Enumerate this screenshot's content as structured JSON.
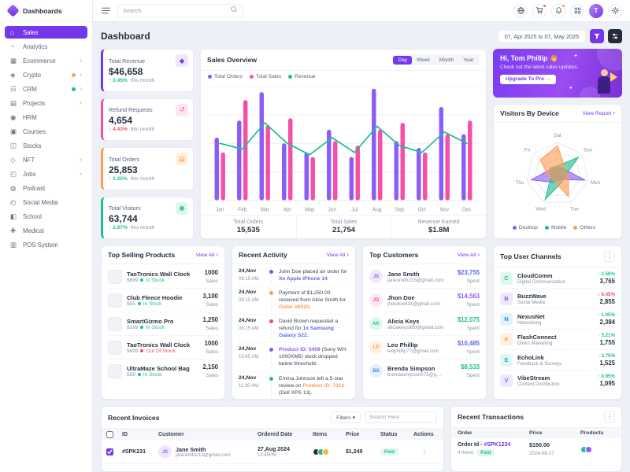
{
  "brand": {
    "name": "Dashboards"
  },
  "icons": {
    "chevron_right": "›",
    "caret_down": "▾",
    "dots_menu": "⋮",
    "spark": "✦",
    "up_arrow": "↑",
    "down_arrow": "↓"
  },
  "topbar": {
    "search_placeholder": "Search",
    "avatar_initial": "T",
    "cart_badge_color": "#f74fa8",
    "bell_badge_color": "#ff9b54"
  },
  "sidebar": {
    "items": [
      {
        "label": "Sales",
        "glyph": "⌂",
        "state": "active"
      },
      {
        "label": "Analytics",
        "glyph": "◔"
      },
      {
        "label": "Ecommerce",
        "glyph": "▦",
        "chev": "›"
      },
      {
        "label": "Crypto",
        "glyph": "◈",
        "chev": "›",
        "badge": "#ff9b54"
      },
      {
        "label": "CRM",
        "glyph": "☷",
        "chev": "›",
        "badge": "#1fbf92"
      },
      {
        "label": "Projects",
        "glyph": "▤",
        "chev": "›"
      },
      {
        "label": "HRM",
        "glyph": "◉"
      },
      {
        "label": "Courses",
        "glyph": "▣"
      },
      {
        "label": "Stocks",
        "glyph": "◫"
      },
      {
        "label": "NFT",
        "glyph": "◇",
        "chev": "›"
      },
      {
        "label": "Jobs",
        "glyph": "◰",
        "chev": "›"
      },
      {
        "label": "Podcast",
        "glyph": "◍"
      },
      {
        "label": "Social Media",
        "glyph": "◴"
      },
      {
        "label": "School",
        "glyph": "◧"
      },
      {
        "label": "Medical",
        "glyph": "✚"
      },
      {
        "label": "POS System",
        "glyph": "▥"
      }
    ]
  },
  "page": {
    "title": "Dashboard",
    "date_range": "07, Apr 2025 to 07, May 2025"
  },
  "stats": [
    {
      "label": "Total Revenue",
      "value": "$46,658",
      "arrow": "↑ ",
      "change": "0.45%",
      "change_color": "#1fbf92",
      "suffix": "this month",
      "accent": "#7337ec",
      "icon_bg": "#efe7fd",
      "glyph": "◆"
    },
    {
      "label": "Refund Requests",
      "value": "4,654",
      "arrow": "↓ ",
      "change": "4.43%",
      "change_color": "#ef4d63",
      "suffix": "this month",
      "accent": "#f74fa8",
      "icon_bg": "#fde7f3",
      "glyph": "↺"
    },
    {
      "label": "Total Orders",
      "value": "25,853",
      "arrow": "↑ ",
      "change": "1.25%",
      "change_color": "#1fbf92",
      "suffix": "this month",
      "accent": "#ff9b54",
      "icon_bg": "#fff1e0",
      "glyph": "▤"
    },
    {
      "label": "Total Visitors",
      "value": "63,744",
      "arrow": "↑ ",
      "change": "2.97%",
      "change_color": "#1fbf92",
      "suffix": "this month",
      "accent": "#1fbf92",
      "icon_bg": "#e0f7ef",
      "glyph": "◉"
    }
  ],
  "sales_overview": {
    "title": "Sales Overview",
    "tabs": [
      {
        "label": "Day",
        "state": "active"
      },
      {
        "label": "Week"
      },
      {
        "label": "Month"
      },
      {
        "label": "Year"
      }
    ],
    "footer": [
      {
        "label": "Total Orders",
        "value": "15,535"
      },
      {
        "label": "Total Sales",
        "value": "21,754"
      },
      {
        "label": "Revenue Earned",
        "value": "$1.8M"
      }
    ]
  },
  "promo": {
    "greeting": "Hi, Tom Phillip 👋",
    "subtitle": "Check out the latest sales updates.",
    "cta": "Upgrade To Pro →"
  },
  "visitors": {
    "title": "Visitors By Device",
    "link": "View Report"
  },
  "chart_data": [
    {
      "type": "bar",
      "title": "Sales Overview",
      "categories": [
        "Jan",
        "Feb",
        "Mar",
        "Apr",
        "May",
        "Jun",
        "Jul",
        "Aug",
        "Sep",
        "Oct",
        "Nov",
        "Dec"
      ],
      "series": [
        {
          "name": "Total Orders",
          "kind": "bar",
          "color": "#8c5cf6",
          "values": [
            55,
            70,
            95,
            50,
            42,
            62,
            38,
            98,
            52,
            46,
            82,
            58
          ]
        },
        {
          "name": "Total Sales",
          "kind": "bar",
          "color": "#f74fa8",
          "values": [
            42,
            88,
            66,
            72,
            38,
            52,
            48,
            62,
            68,
            42,
            58,
            70
          ]
        },
        {
          "name": "Revenue",
          "kind": "line",
          "color": "#1fbf92",
          "values": [
            50,
            45,
            68,
            50,
            40,
            55,
            42,
            65,
            48,
            42,
            60,
            50
          ]
        }
      ],
      "ylim": [
        0,
        100
      ],
      "grid": true,
      "legend_position": "top"
    },
    {
      "type": "radar",
      "title": "Visitors By Device",
      "axes": [
        "Sat",
        "Sun",
        "Mon",
        "Tue",
        "Wed",
        "Thu",
        "Fri"
      ],
      "series": [
        {
          "name": "Desktop",
          "color": "#8c5cf6",
          "values": [
            20,
            25,
            90,
            20,
            30,
            85,
            25
          ]
        },
        {
          "name": "Mobile",
          "color": "#1fbf92",
          "values": [
            25,
            85,
            25,
            30,
            90,
            20,
            30
          ]
        },
        {
          "name": "Others",
          "color": "#ff9b54",
          "values": [
            90,
            30,
            35,
            80,
            25,
            30,
            70
          ]
        }
      ],
      "scale": [
        0,
        100
      ],
      "legend_position": "bottom"
    }
  ],
  "top_products": {
    "title": "Top Selling Products",
    "link": "View All",
    "items": [
      {
        "name": "TaoTronics Wall Clock",
        "price": "$699",
        "status": "In Stock",
        "status_color": "#1fbf92",
        "sales": "1000",
        "sales_label": "Sales"
      },
      {
        "name": "Club Fleece Hoodie",
        "price": "$55",
        "status": "In Stock",
        "status_color": "#1fbf92",
        "sales": "3,100",
        "sales_label": "Sales"
      },
      {
        "name": "SmartGizmo Pro",
        "price": "$199",
        "status": "In Stock",
        "status_color": "#1fbf92",
        "sales": "1,250",
        "sales_label": "Sales"
      },
      {
        "name": "TaoTronics Wall Clock",
        "price": "$699",
        "status": "Out Of Stock",
        "status_color": "#ef4d63",
        "sales": "1000",
        "sales_label": "Sales"
      },
      {
        "name": "UltraMaze School Bag",
        "price": "$59",
        "status": "In Stock",
        "status_color": "#1fbf92",
        "sales": "2,150",
        "sales_label": "Sales"
      }
    ]
  },
  "recent_activity": {
    "title": "Recent Activity",
    "link": "View All",
    "items": [
      {
        "date": "24,Nov",
        "time": "09:15 AM",
        "icon_color": "#5b67f1",
        "pre": "John Doe placed an order for ",
        "link": "Xe Apple iPhone 14",
        "link_color": "#5b67f1",
        "post": ""
      },
      {
        "date": "24,Nov",
        "time": "09:15 AM",
        "icon_color": "#ff9b54",
        "pre": "Payment of $1,250.00 received from Alice Smith for ",
        "link": "Order #5020",
        "link_color": "#ff9b54",
        "post": "."
      },
      {
        "date": "24,Nov",
        "time": "09:15 AM",
        "icon_color": "#ef4d63",
        "pre": "David Brown requested a refund for ",
        "link": "1x Samsung Galaxy S22",
        "link_color": "#5b67f1",
        "post": "."
      },
      {
        "date": "24,Nov",
        "time": "10:45 AM",
        "icon_color": "#8c5cf6",
        "pre": "",
        "link": "Product ID: 5409",
        "link_color": "#8c5cf6",
        "post": " (Sony WH-1000XM5) stock dropped below threshold."
      },
      {
        "date": "24,Nov",
        "time": "11:30 AM",
        "icon_color": "#1fbf92",
        "pre": "Emma Johnson left a 5-star review on ",
        "link": "Product ID: 7312",
        "link_color": "#ff9b54",
        "post": " (Dell XPS 13)."
      }
    ]
  },
  "top_customers": {
    "title": "Top Customers",
    "link": "View All",
    "items": [
      {
        "initials": "JS",
        "avatar_bg": "#efe7fd",
        "avatar_color": "#8c5cf6",
        "name": "Jane Smith",
        "email": "janesmith215@gmail.com",
        "amount": "$23,755",
        "amount_color": "#5b67f1",
        "spent": "Spent"
      },
      {
        "initials": "JD",
        "avatar_bg": "#fde7f3",
        "avatar_color": "#f74fa8",
        "name": "Jhon Doe",
        "email": "jhondoe431@gmail.com",
        "amount": "$14,563",
        "amount_color": "#8c5cf6",
        "spent": "Spent"
      },
      {
        "initials": "AK",
        "avatar_bg": "#e0f7ef",
        "avatar_color": "#1fbf92",
        "name": "Alicia Keys",
        "email": "aliciakeys980@gmail.com",
        "amount": "$12,075",
        "amount_color": "#1fbf92",
        "spent": "Spent"
      },
      {
        "initials": "LP",
        "avatar_bg": "#fff1e0",
        "avatar_color": "#ff9b54",
        "name": "Leo Phillip",
        "email": "leophillip77@gmail.com",
        "amount": "$10,485",
        "amount_color": "#5b67f1",
        "spent": "Spent"
      },
      {
        "initials": "BS",
        "avatar_bg": "#e3f2fd",
        "avatar_color": "#3b82f6",
        "name": "Brenda Simpson",
        "email": "brendasimpson075@gmail.com",
        "amount": "$8,533",
        "amount_color": "#1fbf92",
        "spent": "Spent"
      }
    ]
  },
  "top_channels": {
    "title": "Top User Channels",
    "items": [
      {
        "glyph": "C",
        "icon_bg": "#e0f7ef",
        "icon_color": "#1fbf92",
        "name": "CloudComm",
        "desc": "Digital Communication",
        "change": "↑ 2.58%",
        "change_color": "#1fbf92",
        "value": "3,765"
      },
      {
        "glyph": "B",
        "icon_bg": "#efe7fd",
        "icon_color": "#8c5cf6",
        "name": "BuzzWave",
        "desc": "Social Media",
        "change": "↓ 6.45%",
        "change_color": "#ef4d63",
        "value": "2,855"
      },
      {
        "glyph": "N",
        "icon_bg": "#e3f2fd",
        "icon_color": "#3b82f6",
        "name": "NexusNet",
        "desc": "Networking",
        "change": "↑ 1.05%",
        "change_color": "#1fbf92",
        "value": "2,384"
      },
      {
        "glyph": "F",
        "icon_bg": "#fff1e0",
        "icon_color": "#ff9b54",
        "name": "FlashConnect",
        "desc": "Direct Marketing",
        "change": "↑ 5.21%",
        "change_color": "#1fbf92",
        "value": "1,755"
      },
      {
        "glyph": "E",
        "icon_bg": "#e0f7f7",
        "icon_color": "#14b8a6",
        "name": "EchoLink",
        "desc": "Feedback & Surveys",
        "change": "↑ 3.75%",
        "change_color": "#1fbf92",
        "value": "1,525"
      },
      {
        "glyph": "V",
        "icon_bg": "#efe7fd",
        "icon_color": "#8c5cf6",
        "name": "VibeStream",
        "desc": "Content Distribution",
        "change": "↑ 0.95%",
        "change_color": "#1fbf92",
        "value": "1,095"
      }
    ]
  },
  "invoices": {
    "title": "Recent Invoices",
    "filters_label": "Filters",
    "search_placeholder": "Search Here",
    "columns": [
      "ID",
      "Customer",
      "Ordered Date",
      "Items",
      "Price",
      "Status",
      "Actions"
    ],
    "row": {
      "id": "#SPK231",
      "initials": "JS",
      "avatar_bg": "#efe7fd",
      "avatar_color": "#8c5cf6",
      "name": "Jane Smith",
      "email": "janesmith213@gmail.com",
      "date": "27,Aug 2024",
      "time": "12:45PM",
      "item_colors": [
        "#26303e",
        "#1fbf92",
        "#f5b849"
      ],
      "price": "$1,249",
      "status": "Paid"
    }
  },
  "transactions": {
    "title": "Recent Transactions",
    "columns": [
      "Order",
      "Price",
      "Products"
    ],
    "row": {
      "order_label": "Order Id - ",
      "order_id": "#SPK1234",
      "items": "4 Items",
      "badge": "Paid",
      "price": "$150.00",
      "date": "2024-08-27",
      "product_colors": [
        "#1fbf92",
        "#8c5cf6"
      ]
    }
  }
}
